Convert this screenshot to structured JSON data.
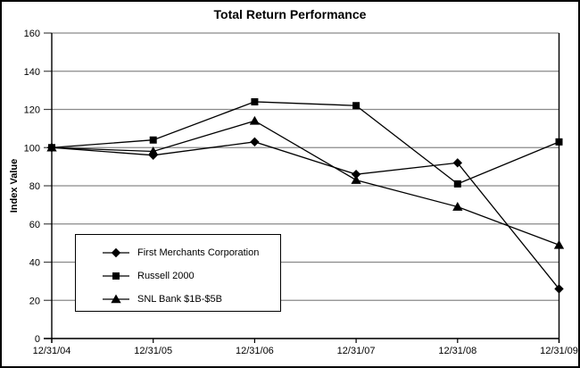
{
  "window": {
    "title": "Total Return Performance"
  },
  "chart_data": {
    "type": "line",
    "title": "Total Return Performance",
    "xlabel": "",
    "ylabel": "Index Value",
    "categories": [
      "12/31/04",
      "12/31/05",
      "12/31/06",
      "12/31/07",
      "12/31/08",
      "12/31/09"
    ],
    "series": [
      {
        "name": "First Merchants Corporation",
        "marker": "diamond",
        "values": [
          100,
          96,
          103,
          86,
          92,
          26
        ]
      },
      {
        "name": "Russell 2000",
        "marker": "square",
        "values": [
          100,
          104,
          124,
          122,
          81,
          103
        ]
      },
      {
        "name": "SNL Bank $1B-$5B",
        "marker": "triangle",
        "values": [
          100,
          98,
          114,
          83,
          69,
          49
        ]
      }
    ],
    "ylim": [
      0,
      160
    ],
    "yticks": [
      0,
      20,
      40,
      60,
      80,
      100,
      120,
      140,
      160
    ],
    "grid": true,
    "legend_position": "inside-lower-left",
    "colors": {
      "line": "#000000",
      "grid": "#8a8a8a",
      "tick": "#444444",
      "axis": "#000000",
      "text": "#000000",
      "background": "#ffffff",
      "border": "#000000"
    }
  }
}
